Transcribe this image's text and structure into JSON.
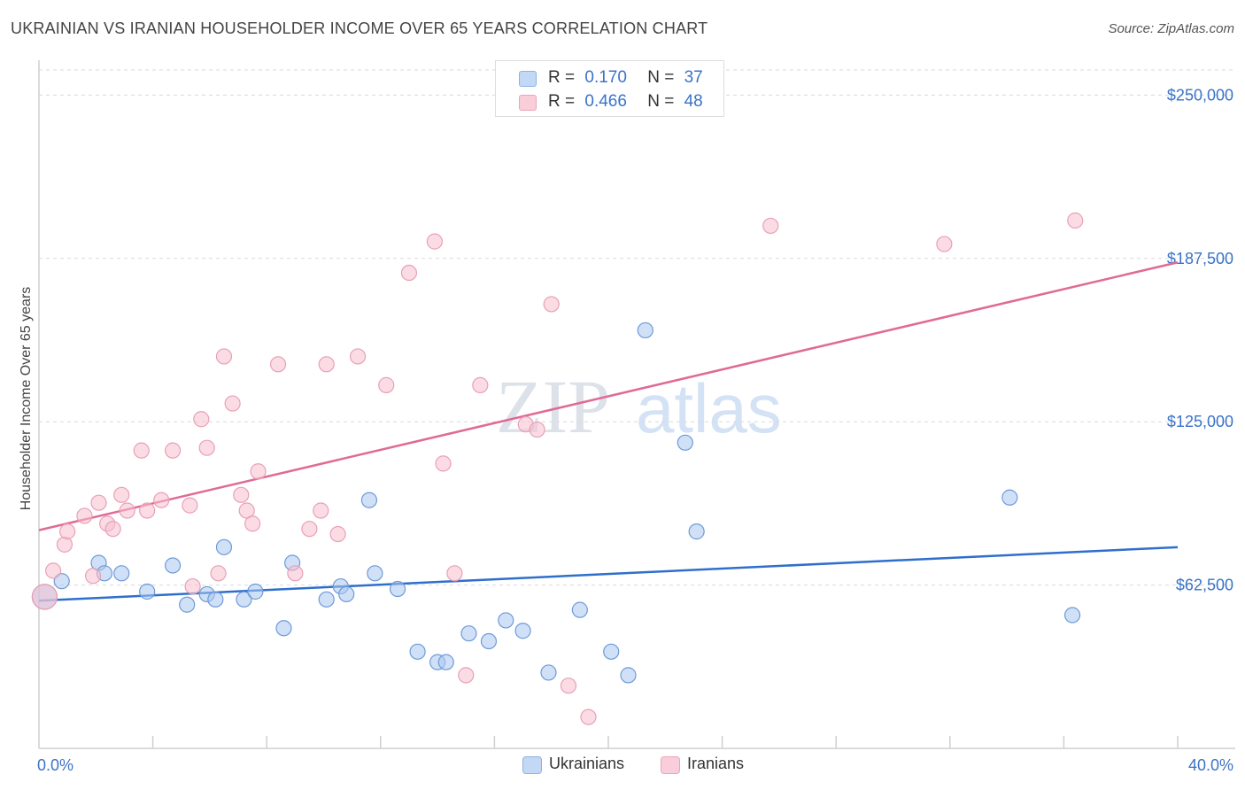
{
  "title": "UKRAINIAN VS IRANIAN HOUSEHOLDER INCOME OVER 65 YEARS CORRELATION CHART",
  "source": "Source: ZipAtlas.com",
  "watermark": {
    "zip": "ZIP",
    "atlas": "atlas"
  },
  "legend": {
    "ukrainians": {
      "r_label": "R =",
      "r_value": "0.170",
      "n_label": "N =",
      "n_value": "37"
    },
    "iranians": {
      "r_label": "R =",
      "r_value": "0.466",
      "n_label": "N =",
      "n_value": "48"
    }
  },
  "chart_data": {
    "type": "scatter",
    "title": "UKRAINIAN VS IRANIAN HOUSEHOLDER INCOME OVER 65 YEARS CORRELATION CHART",
    "xlabel": "",
    "ylabel": "Householder Income Over 65 years",
    "xlim": [
      0,
      40
    ],
    "ylim": [
      0,
      262000
    ],
    "x_tick_labels": [
      {
        "value": 0,
        "label": "0.0%"
      },
      {
        "value": 40,
        "label": "40.0%"
      }
    ],
    "y_tick_labels": [
      {
        "value": 62500,
        "label": "$62,500"
      },
      {
        "value": 125000,
        "label": "$125,000"
      },
      {
        "value": 187500,
        "label": "$187,500"
      },
      {
        "value": 250000,
        "label": "$250,000"
      }
    ],
    "grid": true,
    "legend_position": "top-center",
    "colors": {
      "ukrainians_fill": "#aac8f0",
      "ukrainians_stroke": "#6f9ad8",
      "ukrainians_line": "#2f6fcc",
      "iranians_fill": "#f7bfd0",
      "iranians_stroke": "#e8a0b6",
      "iranians_line": "#e06a95",
      "tick_label": "#3a73c9"
    },
    "series": [
      {
        "name": "Ukrainians",
        "trend": {
          "x": [
            0,
            40
          ],
          "y": [
            56500,
            77000
          ]
        },
        "points": [
          [
            0.2,
            58000
          ],
          [
            0.8,
            64000
          ],
          [
            2.1,
            71000
          ],
          [
            2.3,
            67000
          ],
          [
            2.9,
            67000
          ],
          [
            3.8,
            60000
          ],
          [
            4.7,
            70000
          ],
          [
            5.2,
            55000
          ],
          [
            5.9,
            59000
          ],
          [
            6.2,
            57000
          ],
          [
            6.5,
            77000
          ],
          [
            7.2,
            57000
          ],
          [
            7.6,
            60000
          ],
          [
            8.6,
            46000
          ],
          [
            8.9,
            71000
          ],
          [
            10.1,
            57000
          ],
          [
            10.6,
            62000
          ],
          [
            10.8,
            59000
          ],
          [
            11.6,
            95000
          ],
          [
            11.8,
            67000
          ],
          [
            12.6,
            61000
          ],
          [
            13.3,
            37000
          ],
          [
            14.0,
            33000
          ],
          [
            14.3,
            33000
          ],
          [
            15.1,
            44000
          ],
          [
            15.8,
            41000
          ],
          [
            16.4,
            49000
          ],
          [
            17.0,
            45000
          ],
          [
            17.9,
            29000
          ],
          [
            19.0,
            53000
          ],
          [
            20.1,
            37000
          ],
          [
            20.7,
            28000
          ],
          [
            21.3,
            160000
          ],
          [
            22.7,
            117000
          ],
          [
            23.1,
            83000
          ],
          [
            34.1,
            96000
          ],
          [
            36.3,
            51000
          ]
        ]
      },
      {
        "name": "Iranians",
        "trend": {
          "x": [
            0,
            40
          ],
          "y": [
            83500,
            186000
          ]
        },
        "points": [
          [
            0.2,
            58000
          ],
          [
            0.5,
            68000
          ],
          [
            0.9,
            78000
          ],
          [
            1.0,
            83000
          ],
          [
            1.6,
            89000
          ],
          [
            1.9,
            66000
          ],
          [
            2.1,
            94000
          ],
          [
            2.4,
            86000
          ],
          [
            2.6,
            84000
          ],
          [
            2.9,
            97000
          ],
          [
            3.1,
            91000
          ],
          [
            3.6,
            114000
          ],
          [
            3.8,
            91000
          ],
          [
            4.3,
            95000
          ],
          [
            4.7,
            114000
          ],
          [
            5.3,
            93000
          ],
          [
            5.4,
            62000
          ],
          [
            5.7,
            126000
          ],
          [
            5.9,
            115000
          ],
          [
            6.3,
            67000
          ],
          [
            6.5,
            150000
          ],
          [
            6.8,
            132000
          ],
          [
            7.1,
            97000
          ],
          [
            7.3,
            91000
          ],
          [
            7.5,
            86000
          ],
          [
            7.7,
            106000
          ],
          [
            8.4,
            147000
          ],
          [
            9.0,
            67000
          ],
          [
            9.5,
            84000
          ],
          [
            9.9,
            91000
          ],
          [
            10.1,
            147000
          ],
          [
            10.5,
            82000
          ],
          [
            11.2,
            150000
          ],
          [
            12.2,
            139000
          ],
          [
            13.0,
            182000
          ],
          [
            13.9,
            194000
          ],
          [
            14.2,
            109000
          ],
          [
            14.6,
            67000
          ],
          [
            15.0,
            28000
          ],
          [
            15.5,
            139000
          ],
          [
            17.1,
            124000
          ],
          [
            17.5,
            122000
          ],
          [
            18.0,
            170000
          ],
          [
            18.6,
            24000
          ],
          [
            19.3,
            12000
          ],
          [
            25.7,
            200000
          ],
          [
            31.8,
            193000
          ],
          [
            36.4,
            202000
          ]
        ]
      }
    ]
  },
  "bottom_legend": {
    "ukrainians": "Ukrainians",
    "iranians": "Iranians"
  }
}
